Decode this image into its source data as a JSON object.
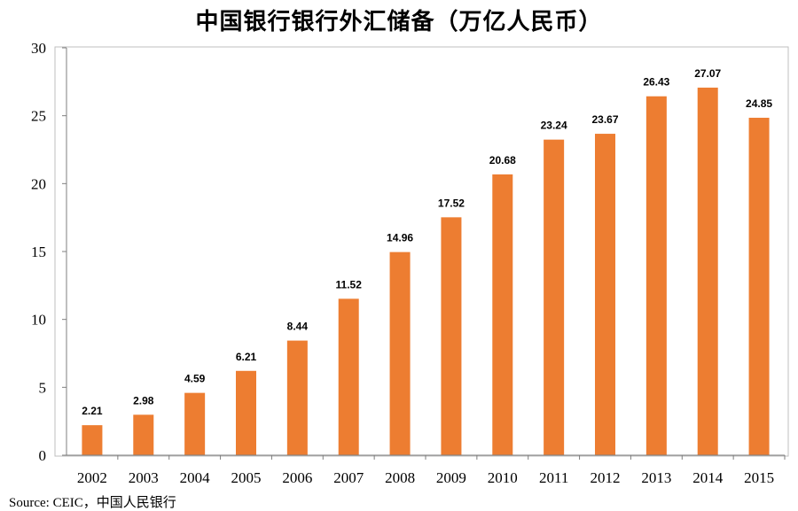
{
  "title": "中国银行银行外汇储备（万亿人民币）",
  "source": "Source: CEIC，中国人民银行",
  "colors": {
    "bar": "#ED7D31",
    "axis": "#7f7f7f",
    "frame": "#bfbfbf"
  },
  "chart_data": {
    "type": "bar",
    "title": "中国银行银行外汇储备（万亿人民币）",
    "categories": [
      "2002",
      "2003",
      "2004",
      "2005",
      "2006",
      "2007",
      "2008",
      "2009",
      "2010",
      "2011",
      "2012",
      "2013",
      "2014",
      "2015"
    ],
    "values": [
      2.21,
      2.98,
      4.59,
      6.21,
      8.44,
      11.52,
      14.96,
      17.52,
      20.68,
      23.24,
      23.67,
      26.43,
      27.07,
      24.85
    ],
    "value_labels": [
      "2.21",
      "2.98",
      "4.59",
      "6.21",
      "8.44",
      "11.52",
      "14.96",
      "17.52",
      "20.68",
      "23.24",
      "23.67",
      "26.43",
      "27.07",
      "24.85"
    ],
    "ylim": [
      0,
      30
    ],
    "yticks": [
      "0",
      "5",
      "10",
      "15",
      "20",
      "25",
      "30"
    ],
    "xlabel": "",
    "ylabel": "",
    "grid": false,
    "legend": "none"
  }
}
